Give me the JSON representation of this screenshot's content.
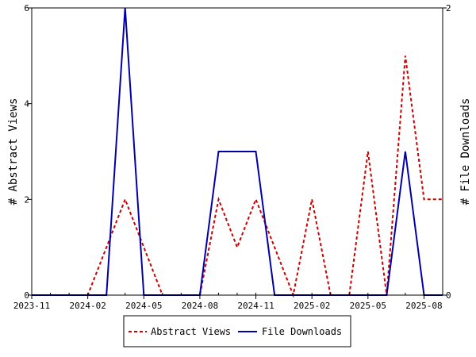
{
  "chart_data": {
    "type": "line",
    "x": [
      "2023-11",
      "2023-12",
      "2024-01",
      "2024-02",
      "2024-03",
      "2024-04",
      "2024-05",
      "2024-06",
      "2024-07",
      "2024-08",
      "2024-09",
      "2024-10",
      "2024-11",
      "2024-12",
      "2025-01",
      "2025-02",
      "2025-03",
      "2025-04",
      "2025-05",
      "2025-06",
      "2025-07",
      "2025-08",
      "2025-09"
    ],
    "x_tick_labels": [
      "2023-11",
      "2024-02",
      "2024-05",
      "2024-08",
      "2024-11",
      "2025-02",
      "2025-05",
      "2025-08"
    ],
    "series": [
      {
        "name": "Abstract Views",
        "axis": "left",
        "color": "#cc0000",
        "dash": true,
        "values": [
          0,
          0,
          0,
          0,
          1,
          2,
          1,
          0,
          0,
          0,
          2,
          1,
          2,
          1,
          0,
          2,
          0,
          0,
          3,
          0,
          5,
          2,
          2
        ]
      },
      {
        "name": "File Downloads",
        "axis": "right",
        "color": "#0000aa",
        "dash": false,
        "values": [
          0,
          0,
          0,
          0,
          0,
          2,
          0,
          0,
          0,
          0,
          1,
          1,
          1,
          0,
          0,
          0,
          0,
          0,
          0,
          0,
          1,
          0,
          0
        ]
      }
    ],
    "ylabel": "# Abstract Views",
    "y2label": "# File Downloads",
    "ylim": [
      0,
      6
    ],
    "y_ticks": [
      0,
      2,
      4,
      6
    ],
    "y2lim": [
      0,
      2
    ],
    "y2_ticks": [
      0,
      2
    ],
    "legend_position": "bottom-center",
    "grid": false
  }
}
